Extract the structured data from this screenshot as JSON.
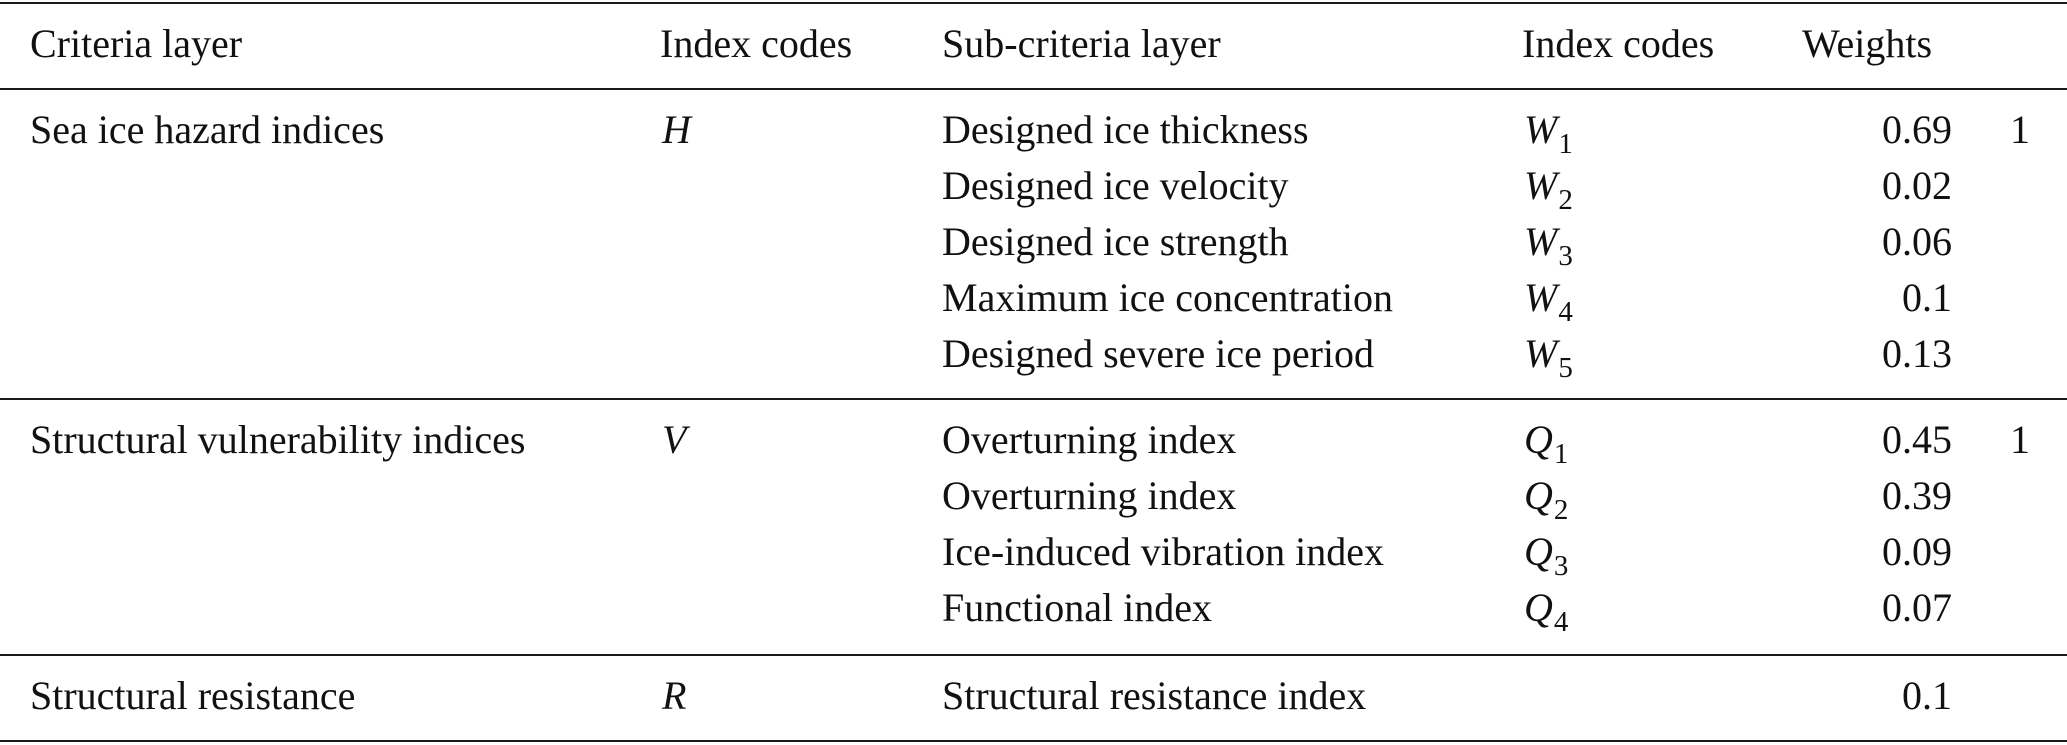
{
  "header": {
    "criteria_layer": "Criteria layer",
    "index_codes_1": "Index codes",
    "sub_criteria_layer": "Sub-criteria layer",
    "index_codes_2": "Index codes",
    "weights": "Weights"
  },
  "groups": [
    {
      "criteria": "Sea ice hazard indices",
      "code": "H",
      "total": "1",
      "rows": [
        {
          "sub": "Designed ice thickness",
          "code_letter": "W",
          "code_sub": "1",
          "weight": "0.69"
        },
        {
          "sub": "Designed ice velocity",
          "code_letter": "W",
          "code_sub": "2",
          "weight": "0.02"
        },
        {
          "sub": "Designed ice strength",
          "code_letter": "W",
          "code_sub": "3",
          "weight": "0.06"
        },
        {
          "sub": "Maximum ice concentration",
          "code_letter": "W",
          "code_sub": "4",
          "weight": "0.1"
        },
        {
          "sub": "Designed severe ice period",
          "code_letter": "W",
          "code_sub": "5",
          "weight": "0.13"
        }
      ]
    },
    {
      "criteria": "Structural vulnerability indices",
      "code": "V",
      "total": "1",
      "rows": [
        {
          "sub": "Overturning index",
          "code_letter": "Q",
          "code_sub": "1",
          "weight": "0.45"
        },
        {
          "sub": "Overturning index",
          "code_letter": "Q",
          "code_sub": "2",
          "weight": "0.39"
        },
        {
          "sub": "Ice-induced vibration index",
          "code_letter": "Q",
          "code_sub": "3",
          "weight": "0.09"
        },
        {
          "sub": "Functional index",
          "code_letter": "Q",
          "code_sub": "4",
          "weight": "0.07"
        }
      ]
    },
    {
      "criteria": "Structural resistance",
      "code": "R",
      "total": "",
      "rows": [
        {
          "sub": "Structural resistance index",
          "code_letter": "",
          "code_sub": "",
          "weight": "0.1"
        }
      ]
    }
  ]
}
